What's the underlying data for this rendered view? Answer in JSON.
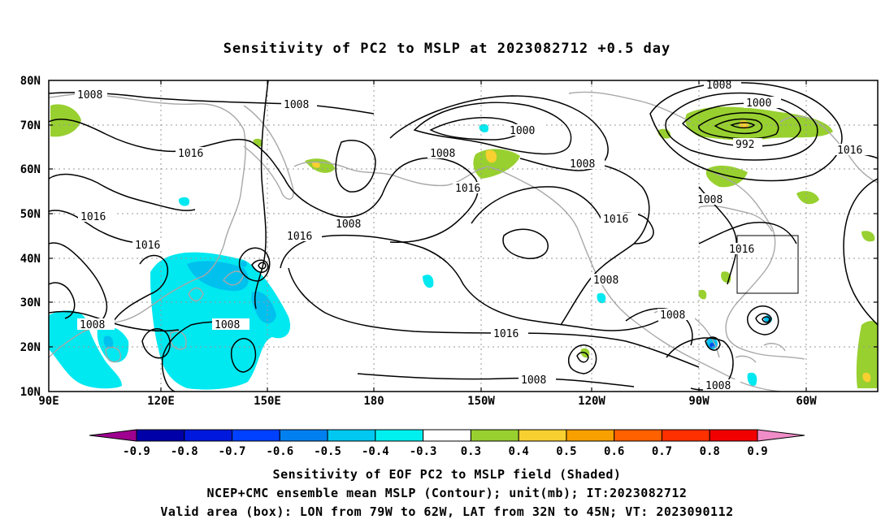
{
  "title": "Sensitivity of PC2 to MSLP at 2023082712 +0.5 day",
  "lat_labels": [
    "80N",
    "70N",
    "60N",
    "50N",
    "40N",
    "30N",
    "20N",
    "10N"
  ],
  "lon_labels": [
    "90E",
    "120E",
    "150E",
    "180",
    "150W",
    "120W",
    "90W",
    "60W"
  ],
  "contour_labels": [
    "1008",
    "1008",
    "1016",
    "1016",
    "1016",
    "1008",
    "1008",
    "1008",
    "1016",
    "1000",
    "1008",
    "1016",
    "1008",
    "1016",
    "1008",
    "1016",
    "1008",
    "1008",
    "1008",
    "1000",
    "992",
    "1016",
    "1008",
    "1016",
    "1008",
    "1008"
  ],
  "colorbar": {
    "labels": [
      "-0.9",
      "-0.8",
      "-0.7",
      "-0.6",
      "-0.5",
      "-0.4",
      "-0.3",
      "0.3",
      "0.4",
      "0.5",
      "0.6",
      "0.7",
      "0.8",
      "0.9"
    ],
    "colors": [
      "#9f0090",
      "#0000a8",
      "#0018dc",
      "#0040ff",
      "#0080f0",
      "#00c8f0",
      "#00f0f0",
      "#ffffff",
      "#98d030",
      "#f8d030",
      "#f8a000",
      "#ff6000",
      "#ff3000",
      "#f00000",
      "#f08cc8"
    ]
  },
  "captions": {
    "line1": "Sensitivity of EOF PC2 to MSLP field (Shaded)",
    "line2": "NCEP+CMC ensemble mean MSLP (Contour); unit(mb); IT:2023082712",
    "line3": "Valid area (box): LON from 79W to 62W, LAT from 32N to 45N; VT: 2023090112"
  },
  "map_extent": {
    "lon": [
      "90E",
      "50W"
    ],
    "lat": [
      "10N",
      "80N"
    ]
  },
  "valid_box": {
    "lon": [
      "79W",
      "62W"
    ],
    "lat": [
      "32N",
      "45N"
    ]
  }
}
